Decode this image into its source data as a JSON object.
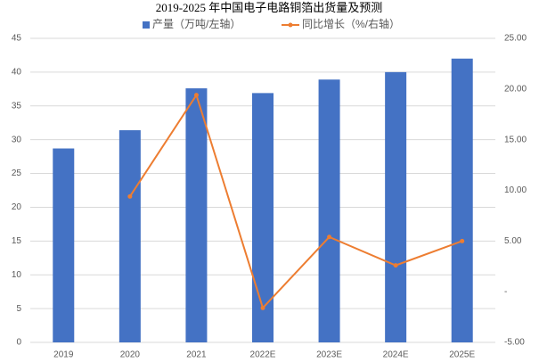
{
  "chart_data": {
    "type": "bar+line",
    "title": "2019-2025 年中国电子电路铜箔出货量及预测",
    "categories": [
      "2019",
      "2020",
      "2021",
      "2022E",
      "2023E",
      "2024E",
      "2025E"
    ],
    "series": [
      {
        "name": "产量（万吨/左轴）",
        "type": "bar",
        "color": "#4472c4",
        "values": [
          28.7,
          31.4,
          37.6,
          36.9,
          38.9,
          40.0,
          42.0
        ]
      },
      {
        "name": "同比增长（%/右轴）",
        "type": "line",
        "axis": "y2",
        "color": "#ed7d31",
        "values": [
          null,
          9.4,
          19.4,
          -1.6,
          5.4,
          2.6,
          5.0
        ]
      }
    ],
    "ylim": [
      0,
      45
    ],
    "yticks": [
      0,
      5,
      10,
      15,
      20,
      25,
      30,
      35,
      40,
      45
    ],
    "y2lim": [
      -5,
      25
    ],
    "y2ticks": [
      {
        "value": -5,
        "label": "-5.00"
      },
      {
        "value": 0,
        "label": "-"
      },
      {
        "value": 5,
        "label": "5.00"
      },
      {
        "value": 10,
        "label": "10.00"
      },
      {
        "value": 15,
        "label": "15.00"
      },
      {
        "value": 20,
        "label": "20.00"
      },
      {
        "value": 25,
        "label": "25.00"
      }
    ],
    "grid": true,
    "legend": "top"
  }
}
